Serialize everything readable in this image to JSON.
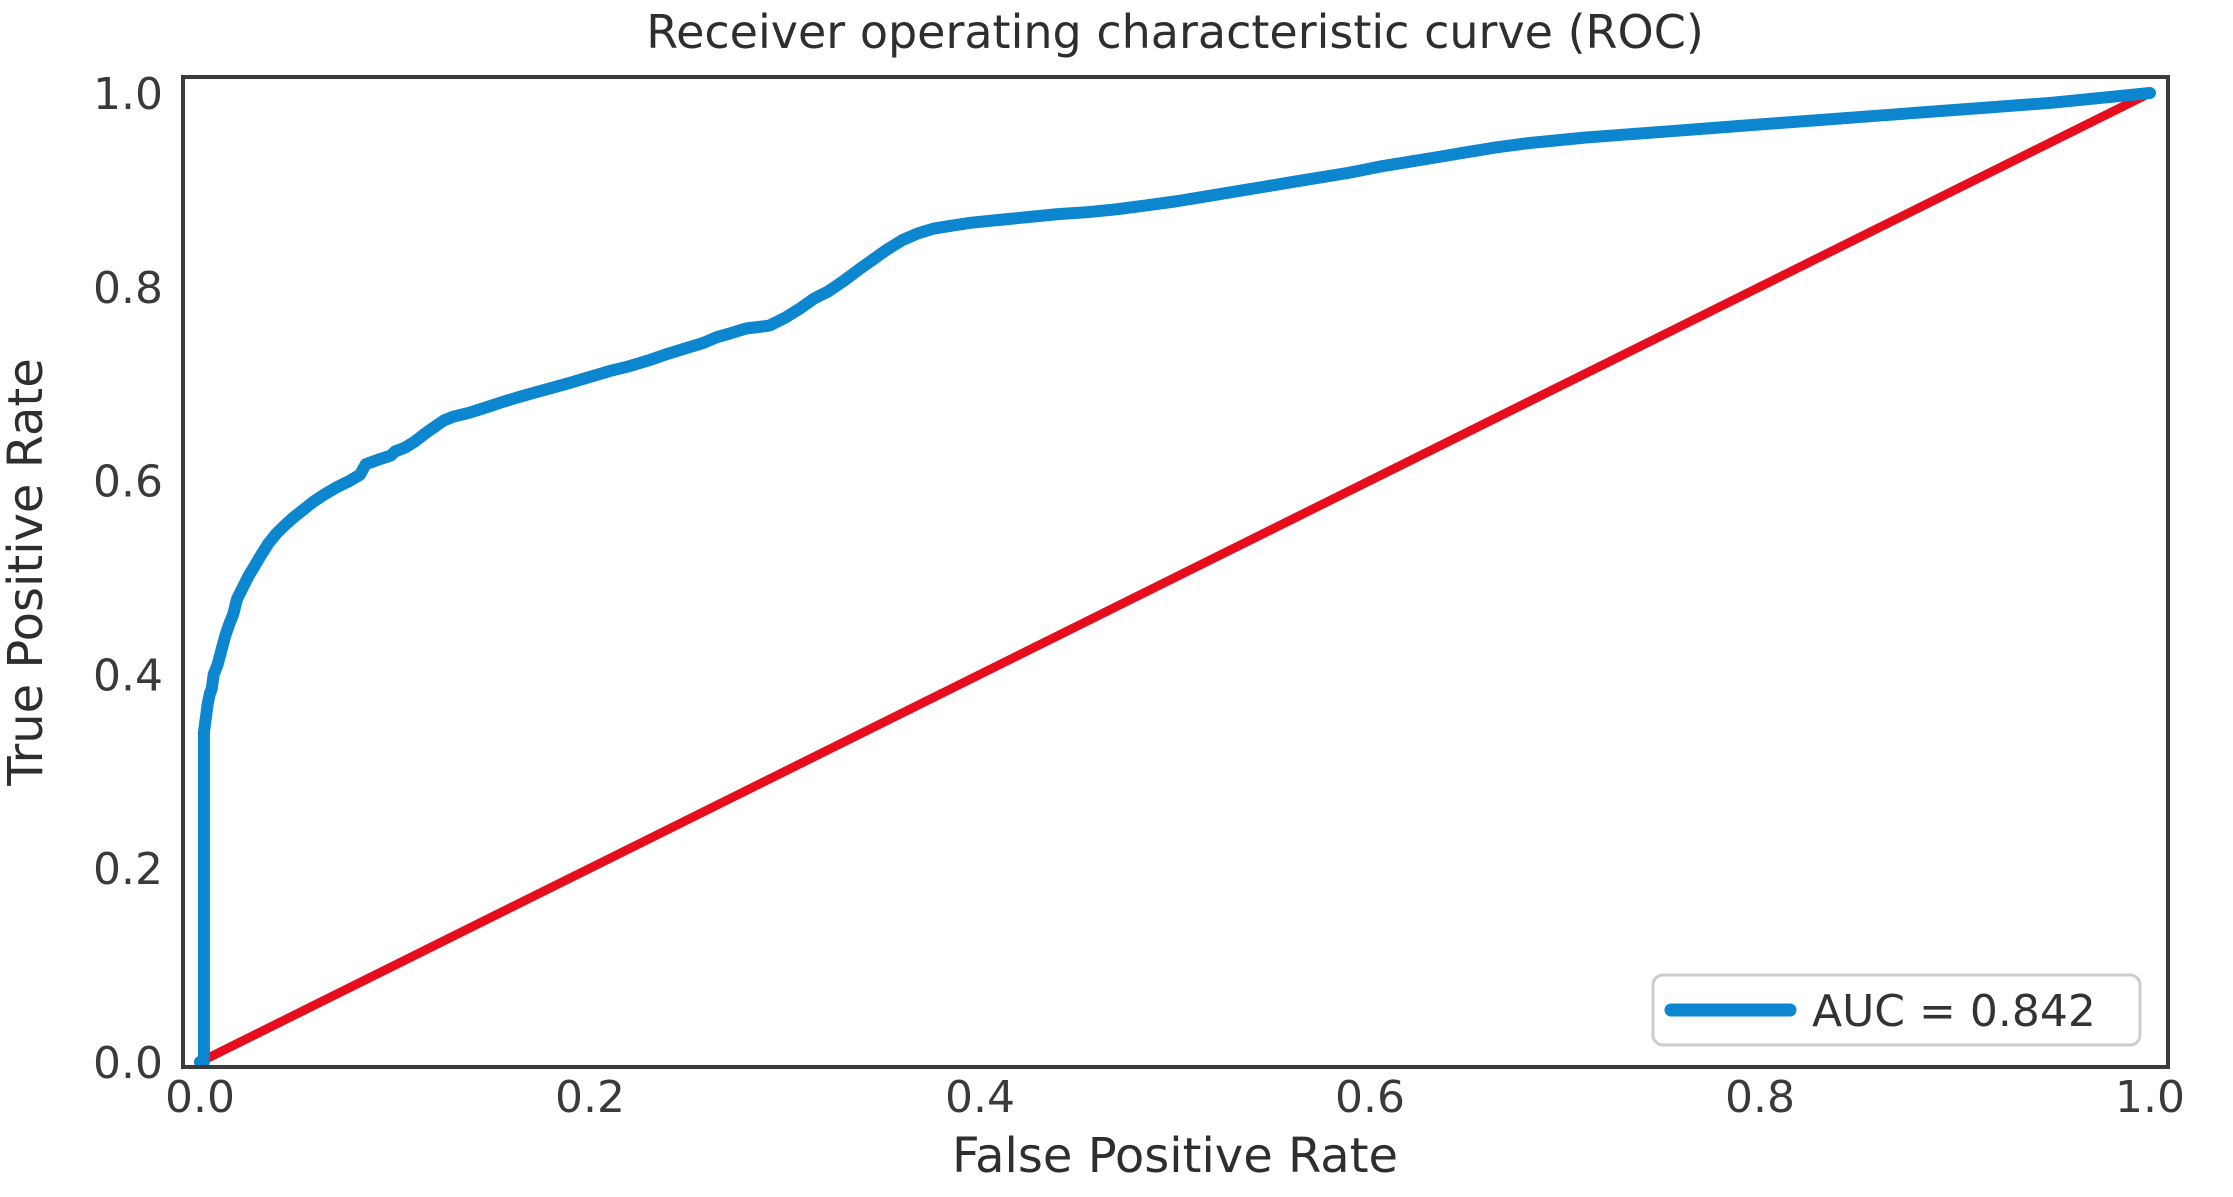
{
  "chart_data": {
    "type": "line",
    "title": "Receiver operating characteristic curve (ROC)",
    "xlabel": "False Positive Rate",
    "ylabel": "True Positive Rate",
    "xlim": [
      0.0,
      1.0
    ],
    "ylim": [
      0.0,
      1.0
    ],
    "x_ticks": [
      "0.0",
      "0.2",
      "0.4",
      "0.6",
      "0.8",
      "1.0"
    ],
    "y_ticks": [
      "0.0",
      "0.2",
      "0.4",
      "0.6",
      "0.8",
      "1.0"
    ],
    "grid": false,
    "auc": 0.842,
    "legend": {
      "position": "lower right",
      "entries": [
        {
          "label": "AUC = 0.842",
          "color": "#0c86cf"
        }
      ]
    },
    "series": [
      {
        "name": "roc-curve",
        "color": "#0c86cf",
        "width": 12,
        "points": [
          [
            0.0,
            0.0
          ],
          [
            0.002,
            0.0
          ],
          [
            0.002,
            0.34
          ],
          [
            0.003,
            0.355
          ],
          [
            0.004,
            0.37
          ],
          [
            0.005,
            0.38
          ],
          [
            0.006,
            0.385
          ],
          [
            0.007,
            0.4
          ],
          [
            0.009,
            0.41
          ],
          [
            0.011,
            0.425
          ],
          [
            0.013,
            0.44
          ],
          [
            0.015,
            0.452
          ],
          [
            0.017,
            0.462
          ],
          [
            0.019,
            0.478
          ],
          [
            0.022,
            0.49
          ],
          [
            0.025,
            0.502
          ],
          [
            0.028,
            0.512
          ],
          [
            0.031,
            0.522
          ],
          [
            0.035,
            0.535
          ],
          [
            0.039,
            0.545
          ],
          [
            0.043,
            0.553
          ],
          [
            0.048,
            0.562
          ],
          [
            0.053,
            0.57
          ],
          [
            0.058,
            0.578
          ],
          [
            0.064,
            0.586
          ],
          [
            0.07,
            0.593
          ],
          [
            0.077,
            0.6
          ],
          [
            0.082,
            0.606
          ],
          [
            0.085,
            0.617
          ],
          [
            0.092,
            0.622
          ],
          [
            0.098,
            0.626
          ],
          [
            0.1,
            0.63
          ],
          [
            0.105,
            0.634
          ],
          [
            0.11,
            0.64
          ],
          [
            0.115,
            0.648
          ],
          [
            0.12,
            0.655
          ],
          [
            0.125,
            0.662
          ],
          [
            0.13,
            0.666
          ],
          [
            0.138,
            0.67
          ],
          [
            0.146,
            0.675
          ],
          [
            0.155,
            0.681
          ],
          [
            0.163,
            0.686
          ],
          [
            0.172,
            0.691
          ],
          [
            0.181,
            0.696
          ],
          [
            0.19,
            0.701
          ],
          [
            0.2,
            0.707
          ],
          [
            0.21,
            0.713
          ],
          [
            0.22,
            0.718
          ],
          [
            0.23,
            0.724
          ],
          [
            0.24,
            0.731
          ],
          [
            0.25,
            0.737
          ],
          [
            0.258,
            0.742
          ],
          [
            0.265,
            0.748
          ],
          [
            0.272,
            0.752
          ],
          [
            0.28,
            0.757
          ],
          [
            0.292,
            0.76
          ],
          [
            0.3,
            0.768
          ],
          [
            0.308,
            0.778
          ],
          [
            0.315,
            0.788
          ],
          [
            0.322,
            0.795
          ],
          [
            0.33,
            0.806
          ],
          [
            0.338,
            0.818
          ],
          [
            0.345,
            0.828
          ],
          [
            0.352,
            0.838
          ],
          [
            0.36,
            0.848
          ],
          [
            0.368,
            0.855
          ],
          [
            0.376,
            0.86
          ],
          [
            0.385,
            0.863
          ],
          [
            0.395,
            0.866
          ],
          [
            0.41,
            0.869
          ],
          [
            0.425,
            0.872
          ],
          [
            0.44,
            0.875
          ],
          [
            0.455,
            0.877
          ],
          [
            0.47,
            0.88
          ],
          [
            0.485,
            0.884
          ],
          [
            0.5,
            0.888
          ],
          [
            0.515,
            0.893
          ],
          [
            0.53,
            0.898
          ],
          [
            0.545,
            0.903
          ],
          [
            0.56,
            0.908
          ],
          [
            0.575,
            0.913
          ],
          [
            0.59,
            0.918
          ],
          [
            0.605,
            0.924
          ],
          [
            0.62,
            0.929
          ],
          [
            0.635,
            0.934
          ],
          [
            0.65,
            0.939
          ],
          [
            0.665,
            0.944
          ],
          [
            0.68,
            0.948
          ],
          [
            0.695,
            0.951
          ],
          [
            0.71,
            0.954
          ],
          [
            0.73,
            0.957
          ],
          [
            0.75,
            0.96
          ],
          [
            0.77,
            0.963
          ],
          [
            0.79,
            0.966
          ],
          [
            0.81,
            0.969
          ],
          [
            0.83,
            0.972
          ],
          [
            0.85,
            0.975
          ],
          [
            0.87,
            0.978
          ],
          [
            0.89,
            0.981
          ],
          [
            0.91,
            0.984
          ],
          [
            0.93,
            0.987
          ],
          [
            0.95,
            0.99
          ],
          [
            0.97,
            0.994
          ],
          [
            1.0,
            1.0
          ]
        ]
      },
      {
        "name": "chance-diagonal",
        "color": "#e60e1d",
        "width": 9,
        "points": [
          [
            0.0,
            0.0
          ],
          [
            1.0,
            1.0
          ]
        ]
      }
    ],
    "style": {
      "spine_color": "#3b3b3b",
      "legend_border_color": "#cccccc",
      "background": "#ffffff"
    }
  }
}
